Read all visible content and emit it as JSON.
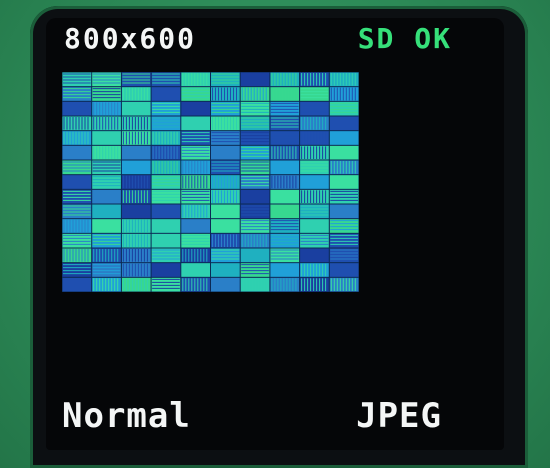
{
  "device": {
    "resolution_text": "800x600",
    "sd_status_text": "SD OK",
    "mode_text": "Normal",
    "format_text": "JPEG",
    "colors": {
      "sd_ok": "#36e07a",
      "text": "#f4f6f6",
      "pcb": "#2f8f5c"
    }
  },
  "preview": {
    "palette": [
      "#1f4fb0",
      "#2a7fc8",
      "#1fb0c0",
      "#2fd0b0",
      "#37d890",
      "#20a0d8",
      "#1a3fa0",
      "#3ae0a0"
    ]
  }
}
